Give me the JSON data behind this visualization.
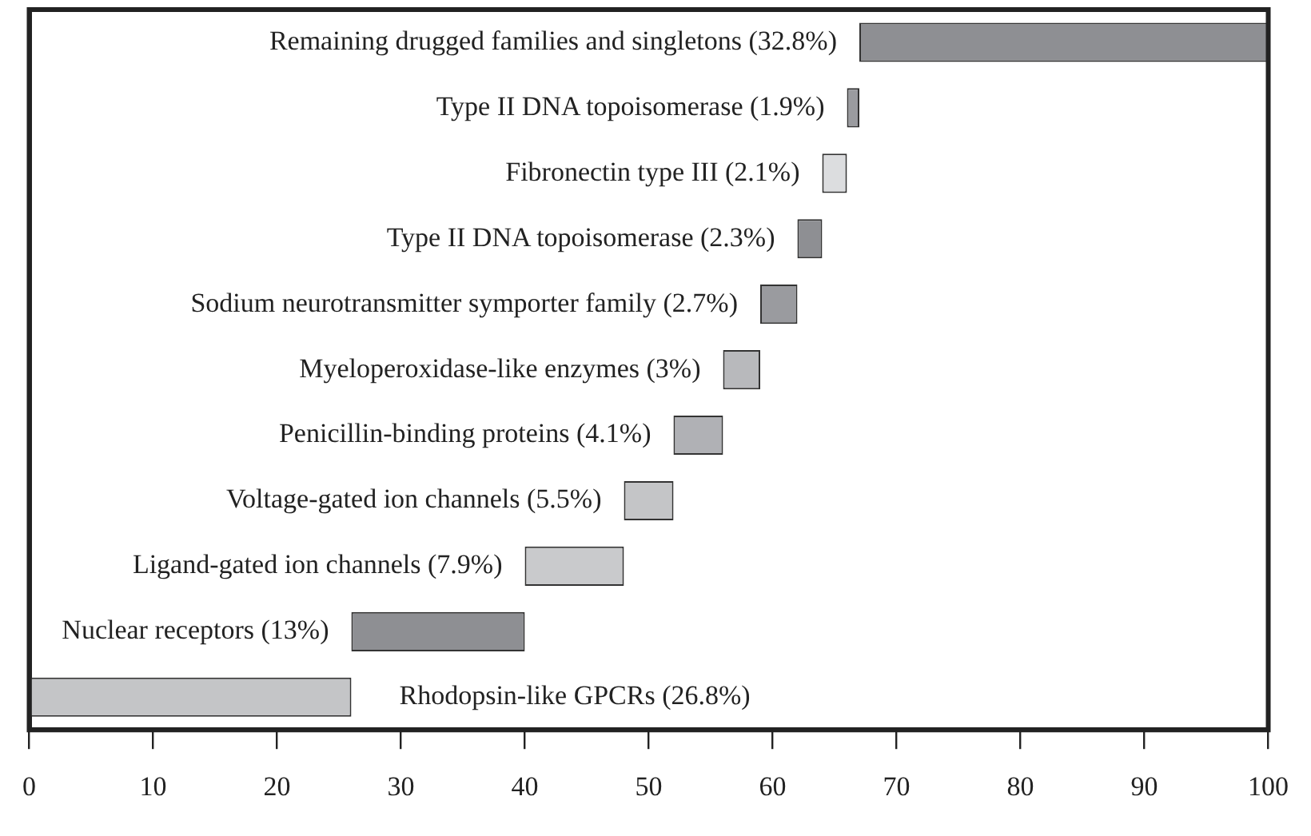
{
  "chart_data": {
    "type": "bar",
    "orientation": "horizontal",
    "categories": [
      "Remaining drugged families and singletons (32.8%)",
      "Type II DNA topoisomerase (1.9%)",
      "Fibronectin type III (2.1%)",
      "Type II DNA topoisomerase (2.3%)",
      "Sodium neurotransmitter symporter family (2.7%)",
      "Myeloperoxidase-like enzymes (3%)",
      "Penicillin-binding proteins (4.1%)",
      "Voltage-gated ion channels (5.5%)",
      "Ligand-gated ion channels (7.9%)",
      "Nuclear receptors (13%)",
      "Rhodopsin-like GPCRs (26.8%)"
    ],
    "base": [
      67,
      66,
      64,
      62,
      59,
      56,
      52,
      48,
      40,
      26,
      0
    ],
    "values": [
      33,
      1,
      2,
      2,
      3,
      3,
      4,
      4,
      8,
      14,
      26
    ],
    "colors": [
      "#8e8f93",
      "#9a9b9f",
      "#dcdddf",
      "#8e8f93",
      "#9a9b9f",
      "#b8b9bc",
      "#b0b1b5",
      "#c4c5c7",
      "#c9cacc",
      "#8e8f93",
      "#c4c5c7"
    ],
    "xlim": [
      0,
      100
    ],
    "xticks": [
      0,
      10,
      20,
      30,
      40,
      50,
      60,
      70,
      80,
      90,
      100
    ],
    "grid": false,
    "legend": false
  }
}
